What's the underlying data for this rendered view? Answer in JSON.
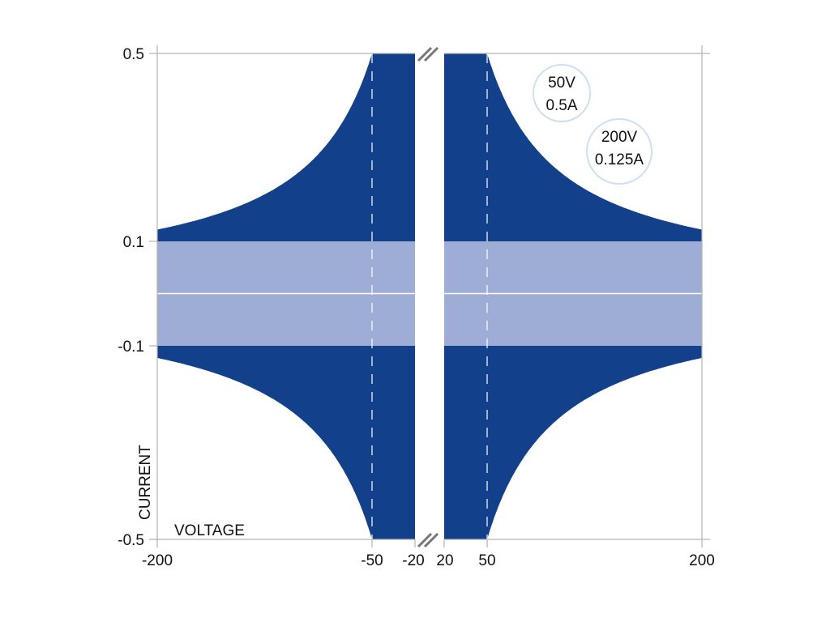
{
  "chart_data": {
    "type": "area",
    "title": "",
    "xlabel": "VOLTAGE",
    "ylabel": "CURRENT",
    "x_ticks": [
      "-200",
      "-50",
      "-20",
      "20",
      "50",
      "200"
    ],
    "y_ticks": [
      "0.5",
      "0.1",
      "-0.1",
      "-0.5"
    ],
    "axis_break": "between -20 and 20",
    "xlim": [
      -200,
      200
    ],
    "ylim": [
      -0.5,
      0.5
    ],
    "regions": [
      {
        "name": "power-limited operating area",
        "rule": "|I| <= min(0.5, 25 / |V|)",
        "voltage_range": "20 to 200 (both polarities)",
        "color": "#12408a"
      },
      {
        "name": "low-current region",
        "current_range": [
          -0.1,
          0.1
        ],
        "color": "#9dadd5"
      }
    ],
    "boundary_points": [
      {
        "voltage": 50,
        "current": 0.5
      },
      {
        "voltage": 200,
        "current": 0.125
      }
    ],
    "annotations": [
      {
        "lines": [
          "50V",
          "0.5A"
        ]
      },
      {
        "lines": [
          "200V",
          "0.125A"
        ]
      }
    ],
    "colors": {
      "dark_region": "#12408a",
      "light_region": "#9dadd5",
      "callout_ring": "#cde0f3",
      "axis": "#b3b3b3"
    }
  }
}
